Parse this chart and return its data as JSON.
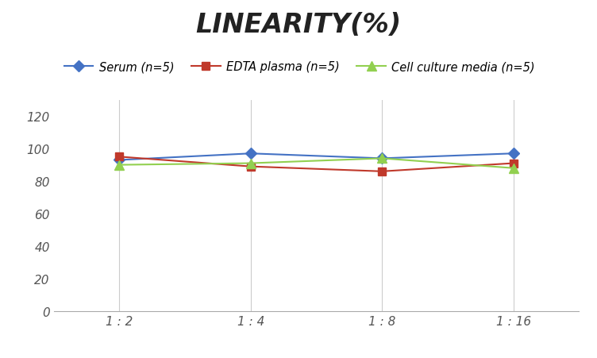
{
  "title": "LINEARITY(%)",
  "title_fontsize": 24,
  "title_fontstyle": "italic",
  "title_fontweight": "bold",
  "x_labels": [
    "1 : 2",
    "1 : 4",
    "1 : 8",
    "1 : 16"
  ],
  "x_values": [
    0,
    1,
    2,
    3
  ],
  "series": [
    {
      "label": "Serum (n=5)",
      "color": "#4472C4",
      "marker": "D",
      "markersize": 7,
      "values": [
        93,
        97,
        94,
        97
      ]
    },
    {
      "label": "EDTA plasma (n=5)",
      "color": "#C0392B",
      "marker": "s",
      "markersize": 7,
      "values": [
        95,
        89,
        86,
        91
      ]
    },
    {
      "label": "Cell culture media (n=5)",
      "color": "#92D050",
      "marker": "^",
      "markersize": 8,
      "values": [
        90,
        91,
        94,
        88
      ]
    }
  ],
  "ylim": [
    0,
    130
  ],
  "yticks": [
    0,
    20,
    40,
    60,
    80,
    100,
    120
  ],
  "grid_color": "#CCCCCC",
  "background_color": "#FFFFFF",
  "legend_fontsize": 10.5,
  "tick_fontsize": 11,
  "tick_label_color": "#555555"
}
